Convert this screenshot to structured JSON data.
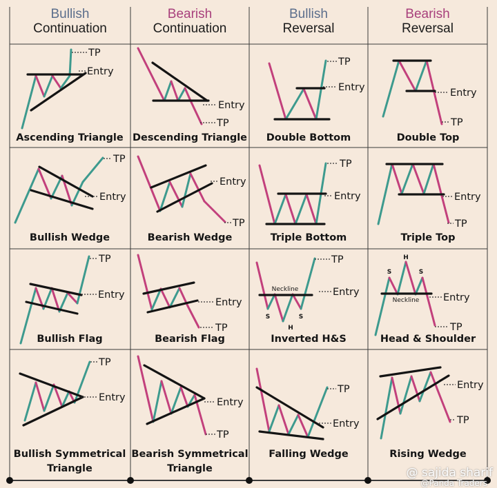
{
  "headers": [
    {
      "line1": "Bullish",
      "line2": "Continuation"
    },
    {
      "line1": "Bearish",
      "line2": "Continuation"
    },
    {
      "line1": "Bullish",
      "line2": "Reversal"
    },
    {
      "line1": "Bearish",
      "line2": "Reversal"
    }
  ],
  "patterns": [
    {
      "name": "Ascending Triangle",
      "tp": "TP",
      "entry": "Entry"
    },
    {
      "name": "Descending Triangle",
      "tp": "TP",
      "entry": "Entry"
    },
    {
      "name": "Double Bottom",
      "tp": "TP",
      "entry": "Entry"
    },
    {
      "name": "Double Top",
      "tp": "TP",
      "entry": "Entry"
    },
    {
      "name": "Bullish Wedge",
      "tp": "TP",
      "entry": "Entry"
    },
    {
      "name": "Bearish Wedge",
      "tp": "TP",
      "entry": "Entry"
    },
    {
      "name": "Triple Bottom",
      "tp": "TP",
      "entry": "Entry"
    },
    {
      "name": "Triple Top",
      "tp": "TP",
      "entry": "Entry"
    },
    {
      "name": "Bullish Flag",
      "tp": "TP",
      "entry": "Entry"
    },
    {
      "name": "Bearish Flag",
      "tp": "TP",
      "entry": "Entry"
    },
    {
      "name": "Inverted H&S",
      "tp": "TP",
      "entry": "Entry",
      "neckline": "Neckline",
      "marks": [
        "S",
        "H",
        "S"
      ]
    },
    {
      "name": "Head & Shoulder",
      "tp": "TP",
      "entry": "Entry",
      "neckline": "Neckline",
      "marks": [
        "S",
        "H",
        "S"
      ]
    },
    {
      "name": "Bullish Symmetrical",
      "name2": "Triangle",
      "tp": "TP",
      "entry": "Entry"
    },
    {
      "name": "Bearish Symmetrical",
      "name2": "Triangle",
      "tp": "TP",
      "entry": "Entry"
    },
    {
      "name": "Falling Wedge",
      "tp": "TP",
      "entry": "Entry"
    },
    {
      "name": "Rising Wedge",
      "tp": "TP",
      "entry": "Entry"
    }
  ],
  "watermark": {
    "line1": "@ sajida sharif",
    "line2": "@Panda Traders"
  },
  "colors": {
    "bull": "#3d9a8e",
    "bear": "#c2407c",
    "line": "#141414",
    "grid": "#3a3a3a",
    "background": "#f6e9dc"
  }
}
